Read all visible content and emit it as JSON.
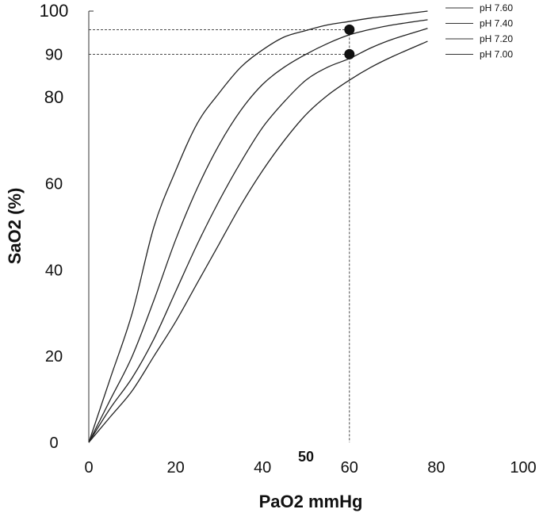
{
  "chart_data": {
    "type": "line",
    "title": "",
    "xlabel": "PaO2 mmHg",
    "ylabel": "SaO2 (%)",
    "xlim": [
      0,
      100
    ],
    "ylim": [
      0,
      100
    ],
    "x_ticks": [
      "0",
      "20",
      "40",
      "50",
      "60",
      "80",
      "100"
    ],
    "y_ticks": [
      "0",
      "20",
      "40",
      "60",
      "80",
      "90",
      "100"
    ],
    "grid": false,
    "legend_position": "top-right",
    "series": [
      {
        "name": "pH 7.60",
        "x": [
          0,
          5,
          10,
          15,
          20,
          25,
          30,
          35,
          40,
          45,
          50,
          55,
          60,
          65,
          70,
          78
        ],
        "y": [
          0,
          15,
          30,
          50,
          63,
          74,
          81,
          87,
          91,
          94,
          95.5,
          96.8,
          97.6,
          98.4,
          99.0,
          100
        ]
      },
      {
        "name": "pH 7.40",
        "x": [
          0,
          5,
          10,
          15,
          20,
          25,
          30,
          35,
          40,
          45,
          50,
          55,
          60,
          65,
          70,
          78
        ],
        "y": [
          0,
          10,
          20,
          33,
          47,
          59,
          69,
          77,
          83,
          87,
          90,
          92.5,
          94.5,
          95.8,
          96.8,
          98
        ]
      },
      {
        "name": "pH 7.20",
        "x": [
          0,
          5,
          10,
          15,
          20,
          25,
          30,
          35,
          40,
          45,
          50,
          55,
          60,
          65,
          70,
          78
        ],
        "y": [
          0,
          8,
          15,
          24,
          35,
          46,
          56,
          65,
          73,
          79,
          84,
          87,
          89,
          91.5,
          93.5,
          96
        ]
      },
      {
        "name": "pH 7.00",
        "x": [
          0,
          5,
          10,
          15,
          20,
          25,
          30,
          35,
          40,
          45,
          50,
          55,
          60,
          65,
          70,
          78
        ],
        "y": [
          0,
          6,
          12,
          20,
          28,
          37,
          46,
          55,
          63,
          70,
          76,
          80.5,
          84,
          87,
          89.5,
          93
        ]
      }
    ],
    "markers": [
      {
        "x": 60,
        "y": 95.7
      },
      {
        "x": 60,
        "y": 90
      }
    ],
    "guides": [
      {
        "x": 60,
        "y": 95.7
      },
      {
        "x": 60,
        "y": 90
      }
    ]
  }
}
